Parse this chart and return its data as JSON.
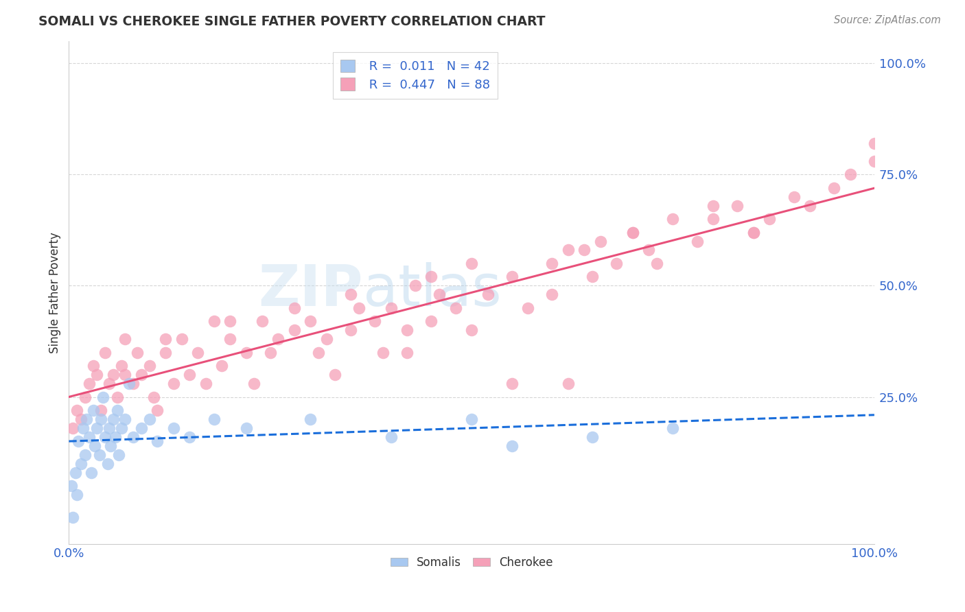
{
  "title": "SOMALI VS CHEROKEE SINGLE FATHER POVERTY CORRELATION CHART",
  "source": "Source: ZipAtlas.com",
  "ylabel": "Single Father Poverty",
  "legend_somali_R": "0.011",
  "legend_somali_N": "42",
  "legend_cherokee_R": "0.447",
  "legend_cherokee_N": "88",
  "somali_color": "#a8c8f0",
  "cherokee_color": "#f5a0b8",
  "somali_line_color": "#1a6edb",
  "cherokee_line_color": "#e8507a",
  "watermark_zip": "ZIP",
  "watermark_atlas": "atlas",
  "somali_x": [
    0.3,
    0.5,
    0.8,
    1.0,
    1.2,
    1.5,
    1.8,
    2.0,
    2.2,
    2.5,
    2.8,
    3.0,
    3.2,
    3.5,
    3.8,
    4.0,
    4.2,
    4.5,
    4.8,
    5.0,
    5.2,
    5.5,
    5.8,
    6.0,
    6.2,
    6.5,
    7.0,
    7.5,
    8.0,
    9.0,
    10.0,
    11.0,
    13.0,
    15.0,
    18.0,
    22.0,
    30.0,
    40.0,
    50.0,
    55.0,
    65.0,
    75.0
  ],
  "somali_y": [
    5.0,
    -2.0,
    8.0,
    3.0,
    15.0,
    10.0,
    18.0,
    12.0,
    20.0,
    16.0,
    8.0,
    22.0,
    14.0,
    18.0,
    12.0,
    20.0,
    25.0,
    16.0,
    10.0,
    18.0,
    14.0,
    20.0,
    16.0,
    22.0,
    12.0,
    18.0,
    20.0,
    28.0,
    16.0,
    18.0,
    20.0,
    15.0,
    18.0,
    16.0,
    20.0,
    18.0,
    20.0,
    16.0,
    20.0,
    14.0,
    16.0,
    18.0
  ],
  "cherokee_x": [
    0.5,
    1.0,
    1.5,
    2.0,
    2.5,
    3.0,
    3.5,
    4.0,
    4.5,
    5.0,
    5.5,
    6.0,
    6.5,
    7.0,
    8.0,
    8.5,
    9.0,
    10.0,
    10.5,
    11.0,
    12.0,
    13.0,
    14.0,
    15.0,
    16.0,
    17.0,
    18.0,
    19.0,
    20.0,
    22.0,
    23.0,
    24.0,
    25.0,
    26.0,
    28.0,
    30.0,
    31.0,
    32.0,
    33.0,
    35.0,
    36.0,
    38.0,
    39.0,
    40.0,
    42.0,
    43.0,
    45.0,
    46.0,
    48.0,
    50.0,
    52.0,
    55.0,
    57.0,
    60.0,
    62.0,
    64.0,
    65.0,
    66.0,
    68.0,
    70.0,
    72.0,
    75.0,
    78.0,
    80.0,
    83.0,
    85.0,
    87.0,
    90.0,
    92.0,
    95.0,
    97.0,
    100.0,
    100.0,
    7.0,
    12.0,
    20.0,
    28.0,
    35.0,
    45.0,
    55.0,
    62.0,
    70.0,
    80.0,
    42.0,
    50.0,
    60.0,
    73.0,
    85.0
  ],
  "cherokee_y": [
    18.0,
    22.0,
    20.0,
    25.0,
    28.0,
    32.0,
    30.0,
    22.0,
    35.0,
    28.0,
    30.0,
    25.0,
    32.0,
    38.0,
    28.0,
    35.0,
    30.0,
    32.0,
    25.0,
    22.0,
    35.0,
    28.0,
    38.0,
    30.0,
    35.0,
    28.0,
    42.0,
    32.0,
    38.0,
    35.0,
    28.0,
    42.0,
    35.0,
    38.0,
    40.0,
    42.0,
    35.0,
    38.0,
    30.0,
    40.0,
    45.0,
    42.0,
    35.0,
    45.0,
    40.0,
    50.0,
    42.0,
    48.0,
    45.0,
    55.0,
    48.0,
    52.0,
    45.0,
    55.0,
    28.0,
    58.0,
    52.0,
    60.0,
    55.0,
    62.0,
    58.0,
    65.0,
    60.0,
    65.0,
    68.0,
    62.0,
    65.0,
    70.0,
    68.0,
    72.0,
    75.0,
    78.0,
    82.0,
    30.0,
    38.0,
    42.0,
    45.0,
    48.0,
    52.0,
    28.0,
    58.0,
    62.0,
    68.0,
    35.0,
    40.0,
    48.0,
    55.0,
    62.0
  ]
}
